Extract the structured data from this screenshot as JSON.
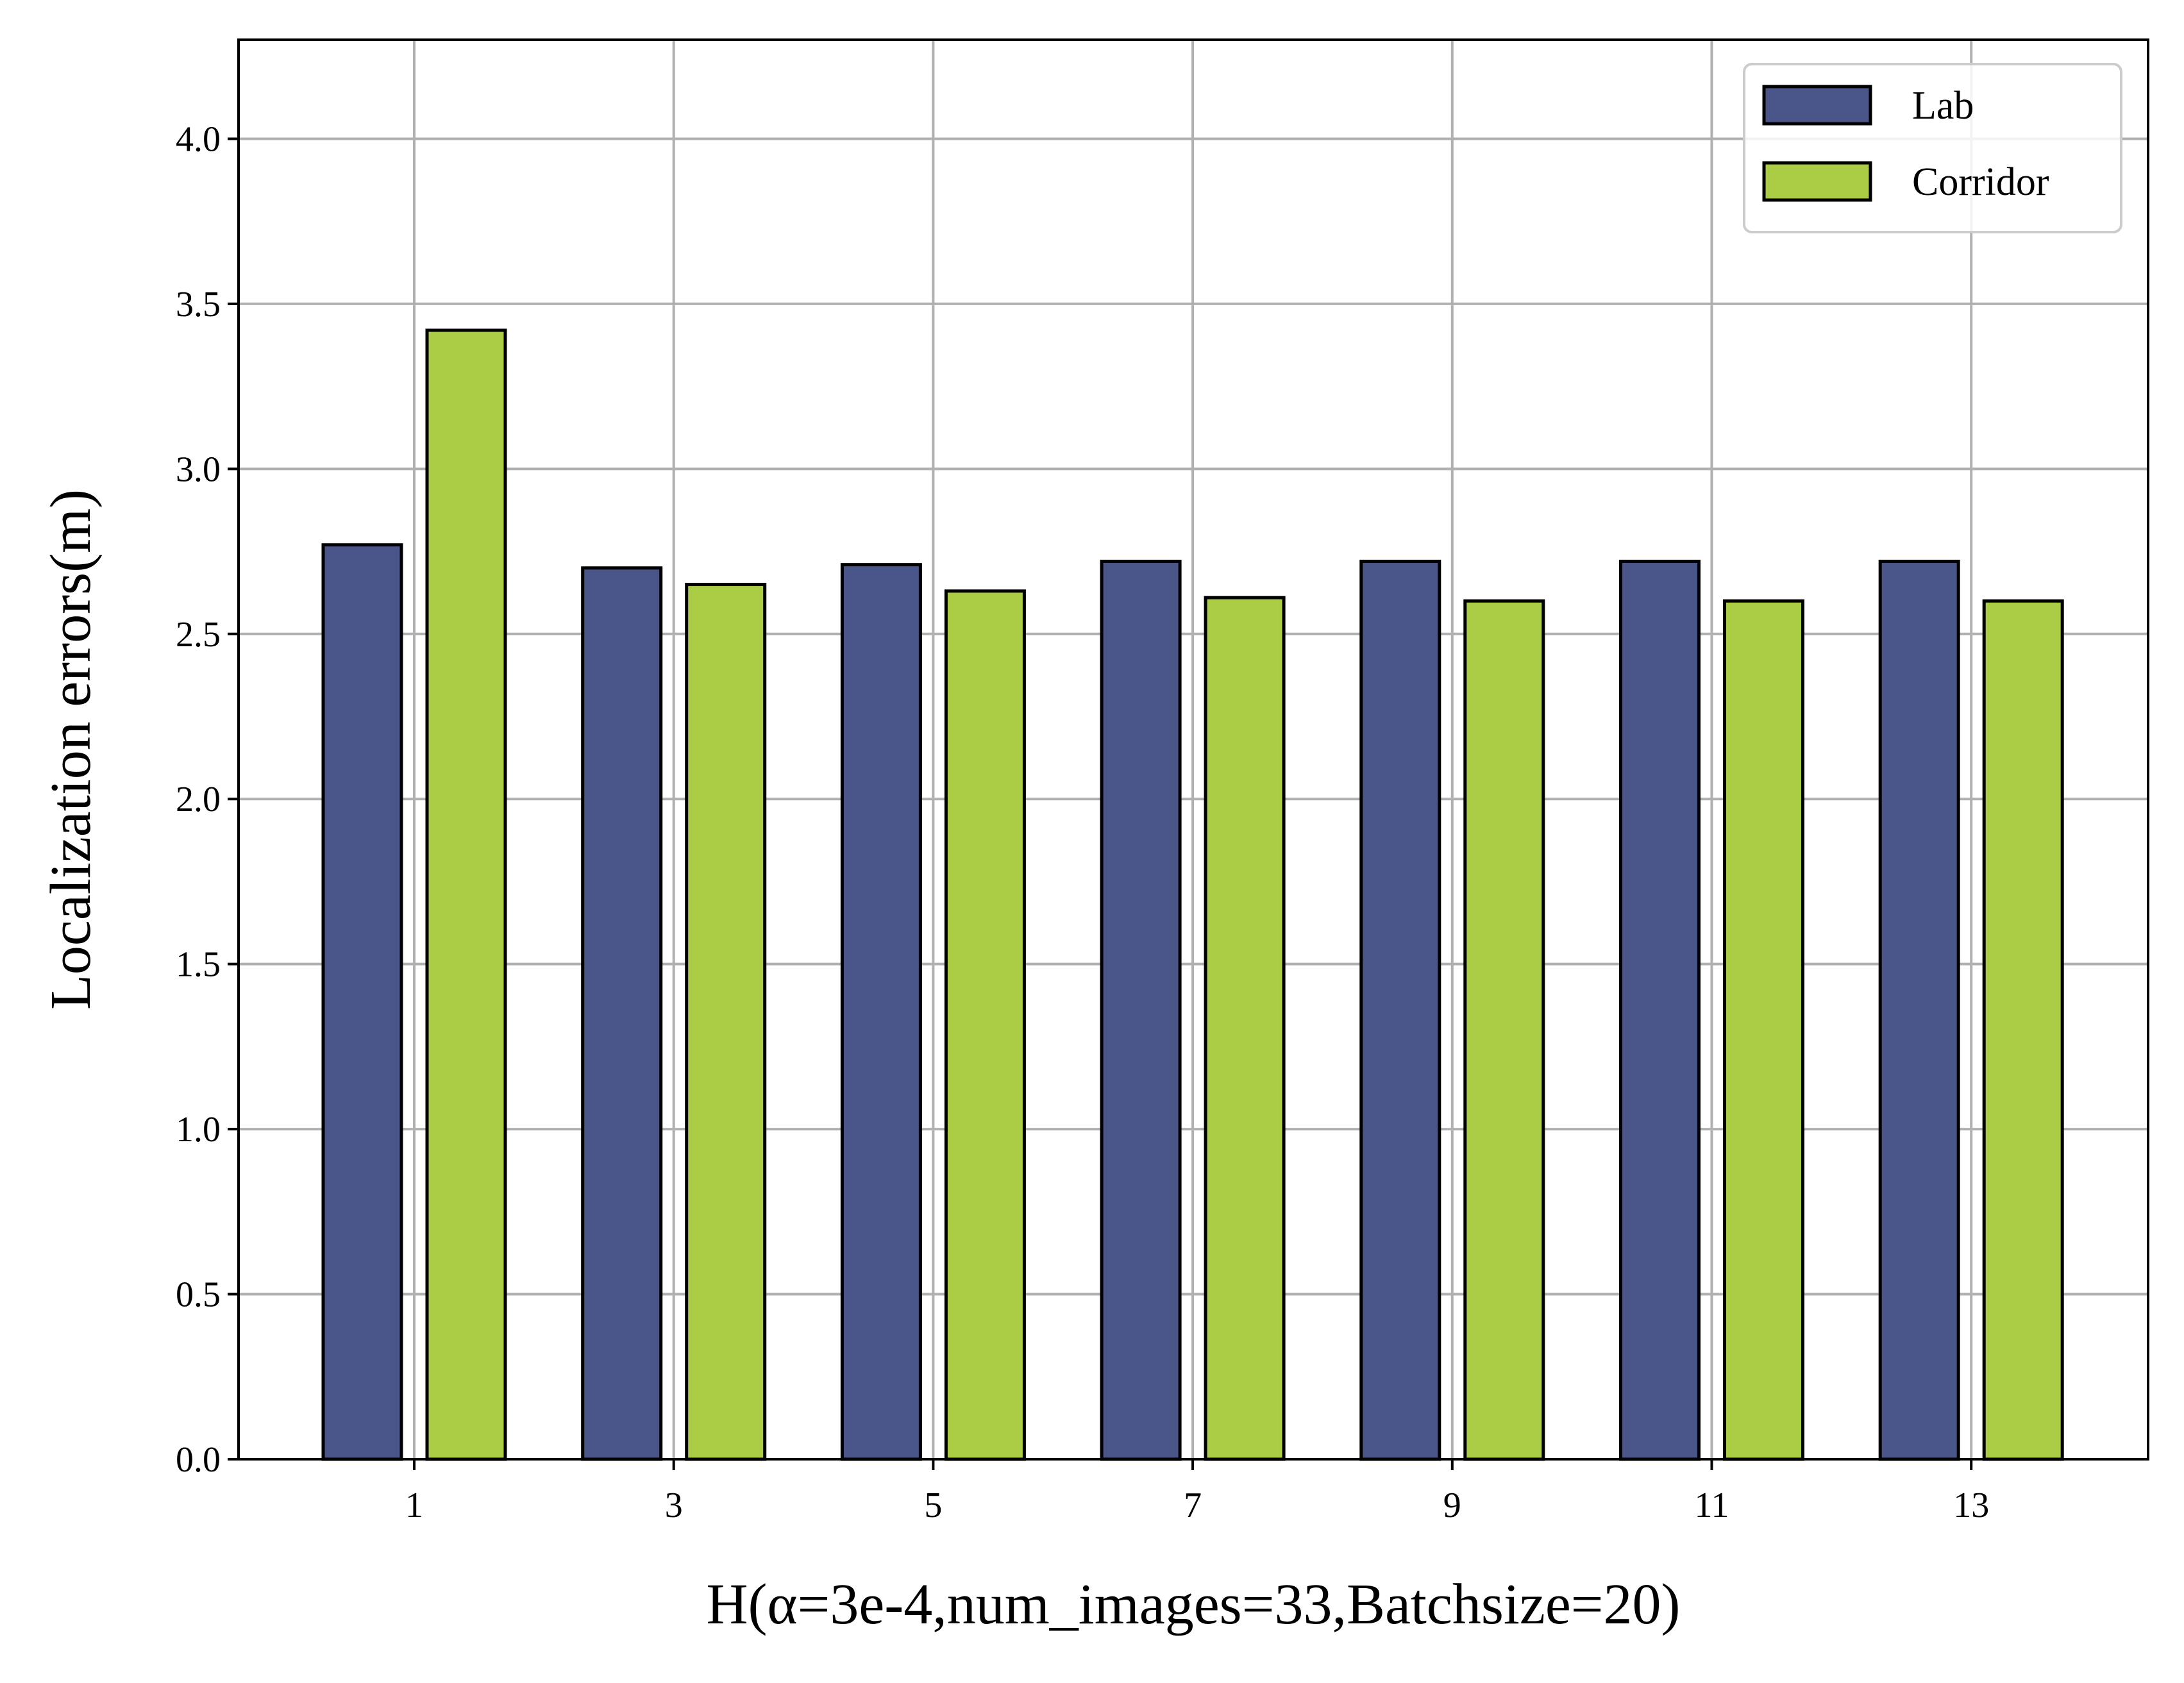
{
  "chart_data": {
    "type": "bar",
    "title": "",
    "xlabel": "H(α=3e-4,num_images=33,Batchsize=20)",
    "ylabel": "Localization errors(m)",
    "categories": [
      "1",
      "3",
      "5",
      "7",
      "9",
      "11",
      "13"
    ],
    "series": [
      {
        "name": "Lab",
        "color": "#4a5589",
        "values": [
          2.77,
          2.7,
          2.71,
          2.72,
          2.72,
          2.72,
          2.72
        ]
      },
      {
        "name": "Corridor",
        "color": "#abcc45",
        "values": [
          3.42,
          2.65,
          2.63,
          2.61,
          2.6,
          2.6,
          2.6
        ]
      }
    ],
    "ylim": [
      0,
      4.3
    ],
    "yticks": [
      0.0,
      0.5,
      1.0,
      1.5,
      2.0,
      2.5,
      3.0,
      3.5,
      4.0
    ],
    "ytick_labels": [
      "0.0",
      "0.5",
      "1.0",
      "1.5",
      "2.0",
      "2.5",
      "3.0",
      "3.5",
      "4.0"
    ],
    "grid": true,
    "legend_position": "top-right"
  }
}
